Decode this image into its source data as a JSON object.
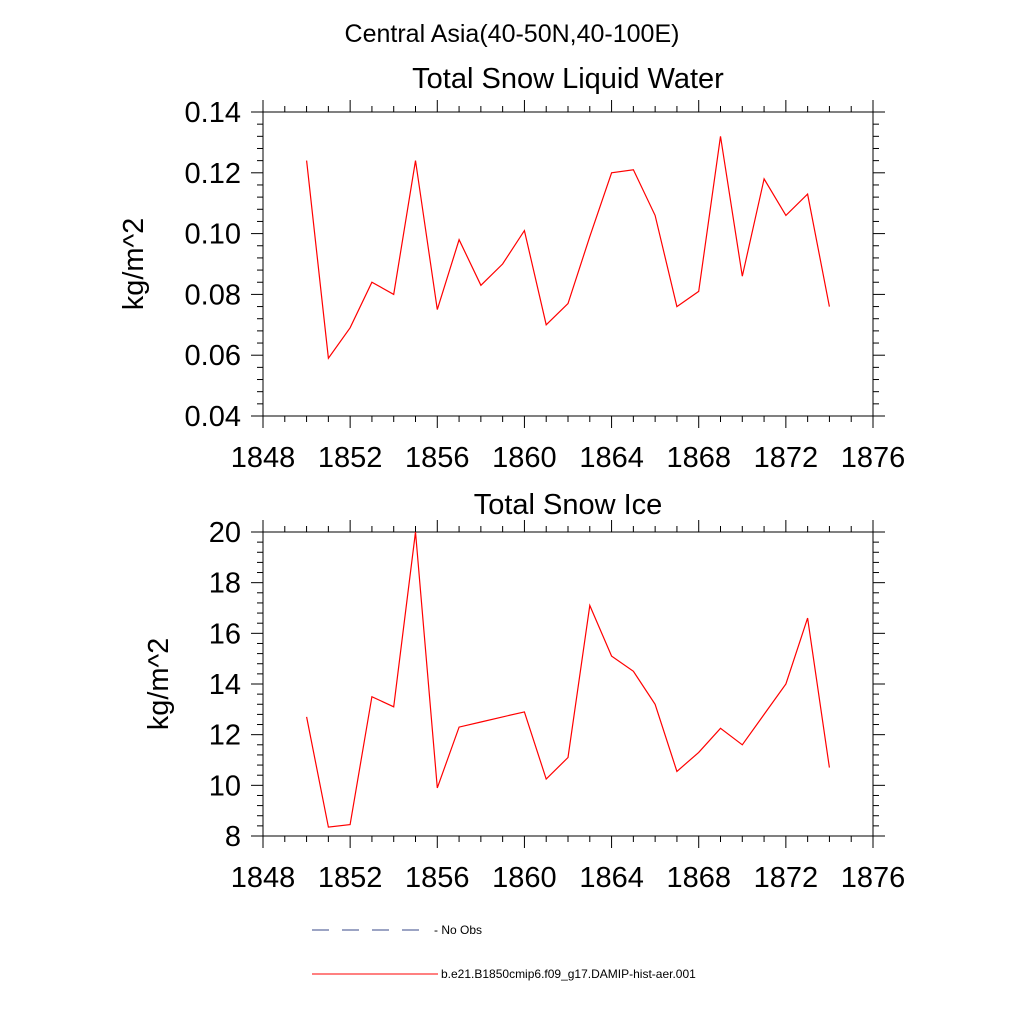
{
  "page": {
    "title": "Central Asia(40-50N,40-100E)"
  },
  "chart_data": [
    {
      "type": "line",
      "title": "Total Snow Liquid Water",
      "xlabel": "",
      "ylabel": "kg/m^2",
      "xlim": [
        1848,
        1876
      ],
      "ylim": [
        0.04,
        0.14
      ],
      "x_ticks": [
        1848,
        1852,
        1856,
        1860,
        1864,
        1868,
        1872,
        1876
      ],
      "x_tick_labels": [
        "1848",
        "1852",
        "1856",
        "1860",
        "1864",
        "1868",
        "1872",
        "1876"
      ],
      "y_ticks": [
        0.04,
        0.06,
        0.08,
        0.1,
        0.12,
        0.14
      ],
      "y_tick_labels": [
        "0.04",
        "0.06",
        "0.08",
        "0.10",
        "0.12",
        "0.14"
      ],
      "grid": false,
      "series": [
        {
          "color": "#ff0000",
          "x": [
            1850,
            1851,
            1852,
            1853,
            1854,
            1855,
            1856,
            1857,
            1858,
            1859,
            1860,
            1861,
            1862,
            1863,
            1864,
            1865,
            1866,
            1867,
            1868,
            1869,
            1870,
            1871,
            1872,
            1873,
            1874
          ],
          "values": [
            0.124,
            0.059,
            0.069,
            0.084,
            0.08,
            0.124,
            0.075,
            0.098,
            0.083,
            0.09,
            0.101,
            0.07,
            0.077,
            0.099,
            0.12,
            0.121,
            0.106,
            0.076,
            0.081,
            0.132,
            0.086,
            0.118,
            0.106,
            0.113,
            0.076
          ]
        }
      ]
    },
    {
      "type": "line",
      "title": "Total Snow Ice",
      "xlabel": "",
      "ylabel": "kg/m^2",
      "xlim": [
        1848,
        1876
      ],
      "ylim": [
        8,
        20
      ],
      "x_ticks": [
        1848,
        1852,
        1856,
        1860,
        1864,
        1868,
        1872,
        1876
      ],
      "x_tick_labels": [
        "1848",
        "1852",
        "1856",
        "1860",
        "1864",
        "1868",
        "1872",
        "1876"
      ],
      "y_ticks": [
        8,
        10,
        12,
        14,
        16,
        18,
        20
      ],
      "y_tick_labels": [
        "8",
        "10",
        "12",
        "14",
        "16",
        "18",
        "20"
      ],
      "grid": false,
      "series": [
        {
          "color": "#ff0000",
          "x": [
            1850,
            1851,
            1852,
            1853,
            1854,
            1855,
            1856,
            1857,
            1858,
            1859,
            1860,
            1861,
            1862,
            1863,
            1864,
            1865,
            1866,
            1867,
            1868,
            1869,
            1870,
            1871,
            1872,
            1873,
            1874
          ],
          "values": [
            12.7,
            8.35,
            8.45,
            13.5,
            13.1,
            20.0,
            9.9,
            12.3,
            12.5,
            12.7,
            12.9,
            10.25,
            11.1,
            17.1,
            15.1,
            14.5,
            13.2,
            10.55,
            11.3,
            12.25,
            11.6,
            12.8,
            14.0,
            16.6,
            10.7
          ]
        }
      ]
    }
  ],
  "legend": {
    "placement": "bottom",
    "items": [
      {
        "label": "- No Obs",
        "color": "#3a4a8a",
        "style": "dashed"
      },
      {
        "label": "b.e21.B1850cmip6.f09_g17.DAMIP-hist-aer.001",
        "color": "#ff0000",
        "style": "solid"
      }
    ]
  }
}
